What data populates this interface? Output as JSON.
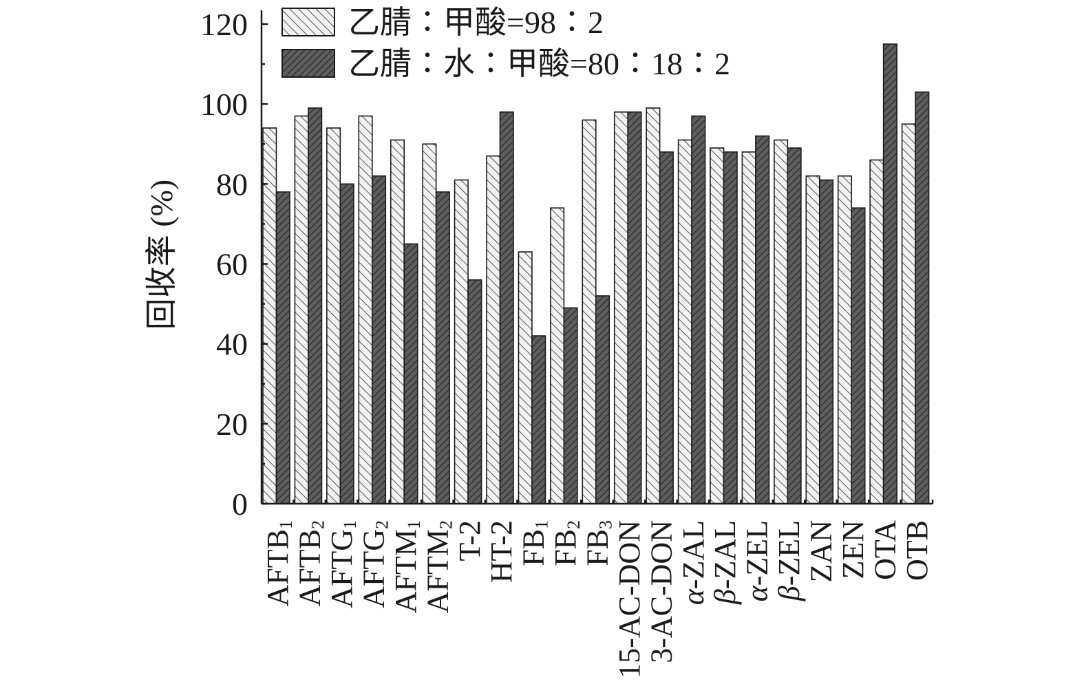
{
  "chart_data": {
    "type": "bar",
    "ylabel": "回收率 (%)",
    "ylim": [
      0,
      120
    ],
    "yticks": [
      0,
      20,
      40,
      60,
      80,
      100,
      120
    ],
    "grid": false,
    "legend_position": "top-left",
    "categories": [
      {
        "base": "AFTB",
        "sub": "1",
        "italic": ""
      },
      {
        "base": "AFTB",
        "sub": "2",
        "italic": ""
      },
      {
        "base": "AFTG",
        "sub": "1",
        "italic": ""
      },
      {
        "base": "AFTG",
        "sub": "2",
        "italic": ""
      },
      {
        "base": "AFTM",
        "sub": "1",
        "italic": ""
      },
      {
        "base": "AFTM",
        "sub": "2",
        "italic": ""
      },
      {
        "base": "T-2",
        "sub": "",
        "italic": ""
      },
      {
        "base": "HT-2",
        "sub": "",
        "italic": ""
      },
      {
        "base": "FB",
        "sub": "1",
        "italic": ""
      },
      {
        "base": "FB",
        "sub": "2",
        "italic": ""
      },
      {
        "base": "FB",
        "sub": "3",
        "italic": ""
      },
      {
        "base": "15-AC-DON",
        "sub": "",
        "italic": ""
      },
      {
        "base": "3-AC-DON",
        "sub": "",
        "italic": ""
      },
      {
        "base": "-ZAL",
        "sub": "",
        "italic": "α"
      },
      {
        "base": "-ZAL",
        "sub": "",
        "italic": "β"
      },
      {
        "base": "-ZEL",
        "sub": "",
        "italic": "α"
      },
      {
        "base": "-ZEL",
        "sub": "",
        "italic": "β"
      },
      {
        "base": "ZAN",
        "sub": "",
        "italic": ""
      },
      {
        "base": "ZEN",
        "sub": "",
        "italic": ""
      },
      {
        "base": "OTA",
        "sub": "",
        "italic": ""
      },
      {
        "base": "OTB",
        "sub": "",
        "italic": ""
      }
    ],
    "series": [
      {
        "name": "乙腈∶甲酸=98∶2",
        "color": "#f2f2f2",
        "hatch": "#555555",
        "values": [
          94,
          97,
          94,
          97,
          91,
          90,
          81,
          87,
          63,
          74,
          96,
          98,
          99,
          91,
          89,
          88,
          91,
          82,
          82,
          86,
          95
        ]
      },
      {
        "name": "乙腈∶水∶甲酸=80∶18∶2",
        "color": "#5e5e5e",
        "hatch": "#2a2a2a",
        "values": [
          78,
          99,
          80,
          82,
          65,
          78,
          56,
          98,
          42,
          49,
          52,
          98,
          88,
          97,
          88,
          92,
          89,
          81,
          74,
          115,
          103
        ]
      }
    ]
  }
}
